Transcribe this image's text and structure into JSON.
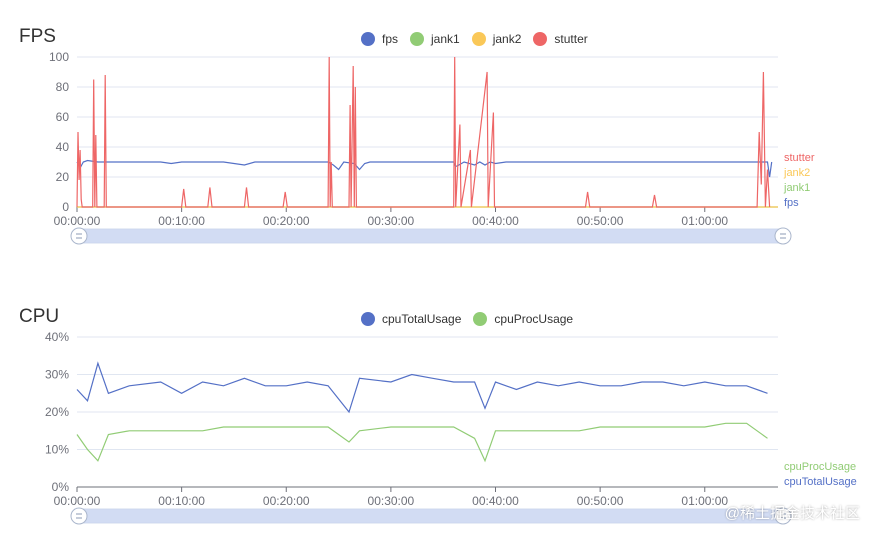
{
  "fps_panel": {
    "title": "FPS",
    "legend": [
      {
        "name": "fps",
        "color": "#5470c6"
      },
      {
        "name": "jank1",
        "color": "#91cc75"
      },
      {
        "name": "jank2",
        "color": "#fac858"
      },
      {
        "name": "stutter",
        "color": "#ee6666"
      }
    ],
    "end_labels": [
      "stutter",
      "jank2",
      "jank1",
      "fps"
    ],
    "y_ticks": [
      "0",
      "20",
      "40",
      "60",
      "80",
      "100"
    ],
    "x_ticks": [
      "00:00:00",
      "00:10:00",
      "00:20:00",
      "00:30:00",
      "00:40:00",
      "00:50:00",
      "01:00:00"
    ]
  },
  "cpu_panel": {
    "title": "CPU",
    "legend": [
      {
        "name": "cpuTotalUsage",
        "color": "#5470c6"
      },
      {
        "name": "cpuProcUsage",
        "color": "#91cc75"
      }
    ],
    "end_labels": [
      "cpuProcUsage",
      "cpuTotalUsage"
    ],
    "y_ticks": [
      "0%",
      "10%",
      "20%",
      "30%",
      "40%"
    ],
    "x_ticks": [
      "00:00:00",
      "00:10:00",
      "00:20:00",
      "00:30:00",
      "00:40:00",
      "00:50:00",
      "01:00:00"
    ]
  },
  "watermark": "@稀土掘金技术社区",
  "chart_data": [
    {
      "type": "line",
      "title": "FPS",
      "x_unit": "minutes",
      "xlim": [
        0,
        67
      ],
      "ylim": [
        0,
        100
      ],
      "series": [
        {
          "name": "fps",
          "color": "#5470c6",
          "points": [
            [
              0,
              30
            ],
            [
              0.3,
              26
            ],
            [
              0.6,
              30
            ],
            [
              1,
              31
            ],
            [
              2,
              30
            ],
            [
              4,
              30
            ],
            [
              8,
              30
            ],
            [
              9,
              29
            ],
            [
              10,
              30
            ],
            [
              14,
              30
            ],
            [
              16,
              28
            ],
            [
              17,
              30
            ],
            [
              24,
              30
            ],
            [
              24.5,
              28
            ],
            [
              25,
              25
            ],
            [
              25.5,
              30
            ],
            [
              26.5,
              29
            ],
            [
              27,
              25
            ],
            [
              27.5,
              29
            ],
            [
              28,
              30
            ],
            [
              36,
              30
            ],
            [
              36.2,
              27
            ],
            [
              36.5,
              28
            ],
            [
              37,
              30
            ],
            [
              38,
              28
            ],
            [
              38.5,
              30
            ],
            [
              39,
              28
            ],
            [
              39.5,
              30
            ],
            [
              40,
              29
            ],
            [
              41,
              30
            ],
            [
              50,
              30
            ],
            [
              60,
              30
            ],
            [
              66,
              30
            ],
            [
              66.2,
              20
            ],
            [
              66.4,
              30
            ]
          ]
        },
        {
          "name": "jank1",
          "color": "#91cc75",
          "points": [
            [
              0,
              0
            ],
            [
              67,
              0
            ]
          ]
        },
        {
          "name": "jank2",
          "color": "#fac858",
          "points": [
            [
              0,
              0
            ],
            [
              67,
              0
            ]
          ]
        },
        {
          "name": "stutter",
          "color": "#ee6666",
          "points": [
            [
              0,
              0
            ],
            [
              0.1,
              50
            ],
            [
              0.2,
              18
            ],
            [
              0.3,
              38
            ],
            [
              0.4,
              5
            ],
            [
              0.5,
              0
            ],
            [
              1.5,
              0
            ],
            [
              1.6,
              85
            ],
            [
              1.7,
              0
            ],
            [
              1.8,
              48
            ],
            [
              1.9,
              0
            ],
            [
              2.6,
              0
            ],
            [
              2.7,
              88
            ],
            [
              2.8,
              0
            ],
            [
              10,
              0
            ],
            [
              10.2,
              12
            ],
            [
              10.4,
              0
            ],
            [
              12.5,
              0
            ],
            [
              12.7,
              13
            ],
            [
              12.9,
              0
            ],
            [
              16,
              0
            ],
            [
              16.2,
              13
            ],
            [
              16.4,
              0
            ],
            [
              19.7,
              0
            ],
            [
              19.9,
              10
            ],
            [
              20.1,
              0
            ],
            [
              24,
              0
            ],
            [
              24.1,
              100
            ],
            [
              24.2,
              0
            ],
            [
              24.3,
              30
            ],
            [
              24.4,
              0
            ],
            [
              26,
              0
            ],
            [
              26.1,
              68
            ],
            [
              26.2,
              0
            ],
            [
              26.4,
              94
            ],
            [
              26.5,
              0
            ],
            [
              26.6,
              80
            ],
            [
              26.7,
              0
            ],
            [
              36,
              0
            ],
            [
              36.1,
              100
            ],
            [
              36.2,
              0
            ],
            [
              36.6,
              55
            ],
            [
              36.7,
              0
            ],
            [
              37.6,
              38
            ],
            [
              37.7,
              0
            ],
            [
              39.2,
              90
            ],
            [
              39.3,
              0
            ],
            [
              39.8,
              63
            ],
            [
              39.9,
              0
            ],
            [
              48.6,
              0
            ],
            [
              48.8,
              10
            ],
            [
              49,
              0
            ],
            [
              55,
              0
            ],
            [
              55.2,
              8
            ],
            [
              55.4,
              0
            ],
            [
              65,
              0
            ],
            [
              65.2,
              50
            ],
            [
              65.4,
              15
            ],
            [
              65.6,
              90
            ],
            [
              65.8,
              0
            ],
            [
              66,
              25
            ],
            [
              66.2,
              0
            ]
          ]
        }
      ]
    },
    {
      "type": "line",
      "title": "CPU",
      "x_unit": "minutes",
      "xlim": [
        0,
        67
      ],
      "ylim": [
        0,
        40
      ],
      "y_unit": "%",
      "series": [
        {
          "name": "cpuTotalUsage",
          "color": "#5470c6",
          "points": [
            [
              0,
              26
            ],
            [
              1,
              23
            ],
            [
              2,
              33
            ],
            [
              3,
              25
            ],
            [
              5,
              27
            ],
            [
              8,
              28
            ],
            [
              10,
              25
            ],
            [
              12,
              28
            ],
            [
              14,
              27
            ],
            [
              16,
              29
            ],
            [
              18,
              27
            ],
            [
              20,
              27
            ],
            [
              22,
              28
            ],
            [
              24,
              27
            ],
            [
              26,
              20
            ],
            [
              27,
              29
            ],
            [
              30,
              28
            ],
            [
              32,
              30
            ],
            [
              34,
              29
            ],
            [
              36,
              28
            ],
            [
              38,
              28
            ],
            [
              39,
              21
            ],
            [
              40,
              28
            ],
            [
              42,
              26
            ],
            [
              44,
              28
            ],
            [
              46,
              27
            ],
            [
              48,
              28
            ],
            [
              50,
              27
            ],
            [
              52,
              27
            ],
            [
              54,
              28
            ],
            [
              56,
              28
            ],
            [
              58,
              27
            ],
            [
              60,
              28
            ],
            [
              62,
              27
            ],
            [
              64,
              27
            ],
            [
              66,
              25
            ]
          ]
        },
        {
          "name": "cpuProcUsage",
          "color": "#91cc75",
          "points": [
            [
              0,
              14
            ],
            [
              1,
              10
            ],
            [
              2,
              7
            ],
            [
              3,
              14
            ],
            [
              5,
              15
            ],
            [
              8,
              15
            ],
            [
              10,
              15
            ],
            [
              12,
              15
            ],
            [
              14,
              16
            ],
            [
              16,
              16
            ],
            [
              18,
              16
            ],
            [
              20,
              16
            ],
            [
              22,
              16
            ],
            [
              24,
              16
            ],
            [
              26,
              12
            ],
            [
              27,
              15
            ],
            [
              30,
              16
            ],
            [
              32,
              16
            ],
            [
              34,
              16
            ],
            [
              36,
              16
            ],
            [
              38,
              13
            ],
            [
              39,
              7
            ],
            [
              40,
              15
            ],
            [
              42,
              15
            ],
            [
              44,
              15
            ],
            [
              46,
              15
            ],
            [
              48,
              15
            ],
            [
              50,
              16
            ],
            [
              52,
              16
            ],
            [
              54,
              16
            ],
            [
              56,
              16
            ],
            [
              58,
              16
            ],
            [
              60,
              16
            ],
            [
              62,
              17
            ],
            [
              64,
              17
            ],
            [
              66,
              13
            ]
          ]
        }
      ]
    }
  ]
}
